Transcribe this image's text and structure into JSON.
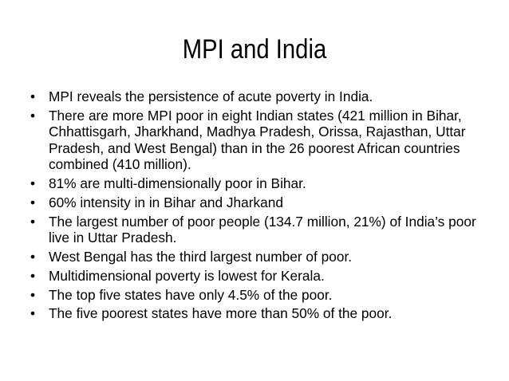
{
  "slide": {
    "title": "MPI and India",
    "bullet_glyph": "•",
    "bullets": [
      "MPI reveals the persistence of acute poverty in India.",
      "There are more MPI poor in eight Indian states (421 million in Bihar, Chhattisgarh, Jharkhand, Madhya Pradesh, Orissa, Rajasthan, Uttar Pradesh, and West Bengal) than in the 26 poorest African countries combined (410 million).",
      "81% are multi-dimensionally poor in Bihar.",
      "60% intensity in in Bihar and Jharkand",
      "The largest number of poor people (134.7 million, 21%) of India’s poor live in Uttar Pradesh.",
      "West Bengal has the third largest number of poor.",
      "Multidimensional poverty is lowest for Kerala.",
      "The top five states have only 4.5% of the poor.",
      "The five poorest states have more than 50% of the poor."
    ]
  }
}
